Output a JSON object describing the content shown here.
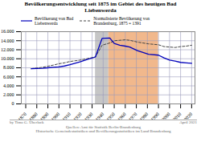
{
  "chart_data": {
    "type": "line",
    "title": "Bevölkerungsentwicklung seit 1875 im Gebiet des heutigen Bad\nLiebenwerda",
    "x": [
      1875,
      1880,
      1885,
      1890,
      1895,
      1900,
      1905,
      1910,
      1919,
      1925,
      1933,
      1939,
      1946,
      1950,
      1955,
      1960,
      1964,
      1971,
      1981,
      1990,
      1995,
      2000,
      2005,
      2010,
      2015,
      2020
    ],
    "series": [
      {
        "name": "Bevölkerung von Bad\nLiebenwerda",
        "color": "#0000bb",
        "line_style": "solid",
        "values": [
          7800,
          7850,
          7900,
          8000,
          8100,
          8200,
          8400,
          8700,
          9300,
          9800,
          10400,
          14500,
          14600,
          13400,
          13000,
          12800,
          12600,
          11800,
          11000,
          10800,
          10200,
          9700,
          9500,
          9200,
          9100,
          9000
        ]
      },
      {
        "name": "Normalisierte Bevölkerung von\nBrandenburg, 1875 = 1391",
        "color": "#444444",
        "line_style": "dashed",
        "values": [
          7800,
          7950,
          8100,
          8350,
          8600,
          8900,
          9100,
          9400,
          9700,
          10000,
          10400,
          13000,
          13500,
          14000,
          14100,
          14200,
          14100,
          13700,
          13300,
          13100,
          12700,
          12600,
          12500,
          12700,
          12800,
          13000
        ]
      }
    ],
    "xlim": [
      1866,
      2023
    ],
    "xticks": [
      1870,
      1880,
      1890,
      1900,
      1910,
      1920,
      1930,
      1940,
      1950,
      1960,
      1970,
      1980,
      1990,
      2000,
      2010,
      2020
    ],
    "ylim": [
      0,
      16000
    ],
    "yticks": [
      0,
      {
        "value": 2000,
        "label": "2.000"
      },
      {
        "value": 4000,
        "label": "4.000"
      },
      {
        "value": 6000,
        "label": "6.000"
      },
      {
        "value": 8000,
        "label": "8.000"
      },
      {
        "value": 10000,
        "label": "10.000"
      },
      {
        "value": 12000,
        "label": "12.000"
      },
      {
        "value": 14000,
        "label": "14.000"
      },
      {
        "value": 16000,
        "label": "16.000"
      }
    ],
    "grid": true,
    "legend": "upper left",
    "spans": [
      {
        "start": 1933,
        "end": 1945,
        "color": "#c0c0c0"
      },
      {
        "start": 1945,
        "end": 1990,
        "color": "#f0b080"
      }
    ],
    "annotations": [
      "by Timo G. Überlack",
      "Quellen: Amt für Statistik Berlin-Brandenburg\nHistorische Gemeindestatistiken und Bevölkerungsstatistiken im Land Brandenburg",
      "April 2021"
    ]
  }
}
